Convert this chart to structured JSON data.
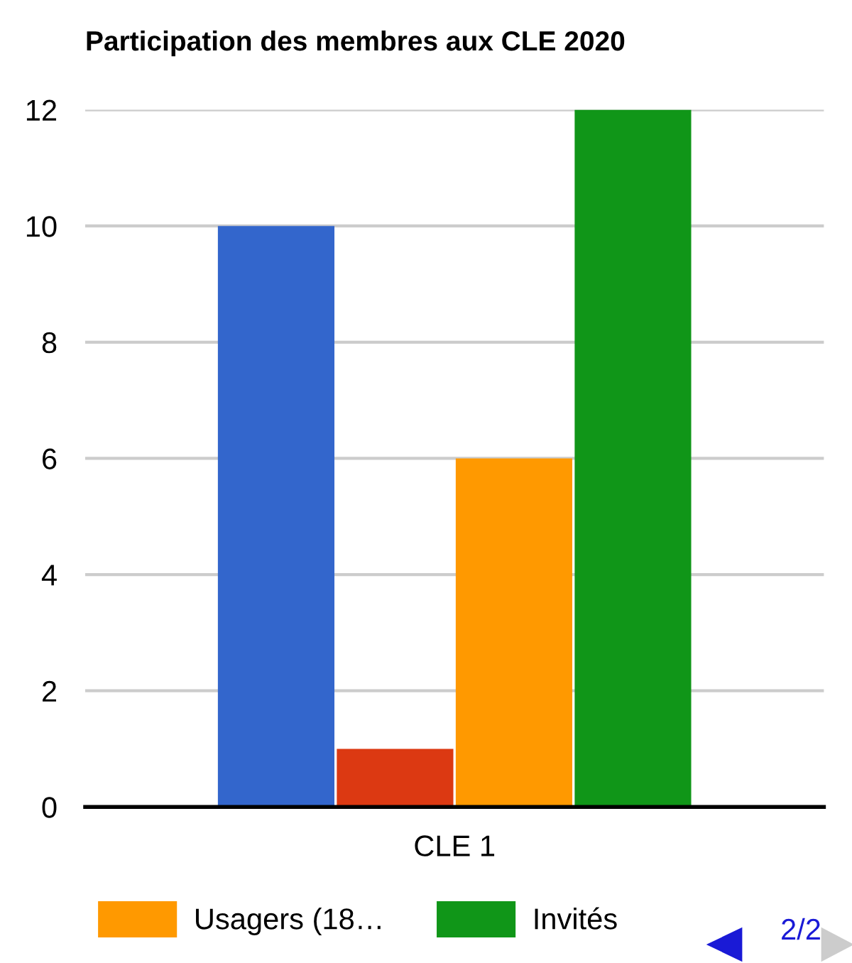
{
  "chart_data": {
    "type": "bar",
    "title": "Participation des membres aux CLE 2020",
    "categories": [
      "CLE 1"
    ],
    "series": [
      {
        "color": "#3366cc",
        "values": [
          10
        ]
      },
      {
        "color": "#dc3912",
        "values": [
          1
        ]
      },
      {
        "name": "Usagers (18…",
        "color": "#ff9900",
        "values": [
          6
        ]
      },
      {
        "name": "Invités",
        "color": "#109618",
        "values": [
          12
        ]
      }
    ],
    "ylim": [
      0,
      12
    ],
    "yticks": [
      0,
      2,
      4,
      6,
      8,
      10,
      12
    ],
    "grid": "y",
    "legend": "bottom",
    "annotations": [
      "2/2"
    ]
  }
}
